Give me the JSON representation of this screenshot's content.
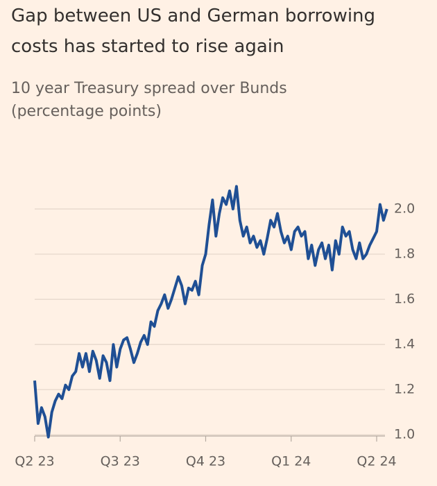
{
  "chart_data": {
    "type": "line",
    "title": [
      "Gap between US and German borrowing",
      "costs has started to rise again"
    ],
    "subtitle": [
      "10 year Treasury spread over Bunds",
      "(percentage points)"
    ],
    "categories": [
      "Q2 23",
      null,
      null,
      null,
      null,
      null,
      null,
      null,
      null,
      null,
      null,
      null,
      null,
      null,
      null,
      null,
      null,
      null,
      null,
      null,
      null,
      null,
      null,
      null,
      null,
      "Q3 23",
      null,
      null,
      null,
      null,
      null,
      null,
      null,
      null,
      null,
      null,
      null,
      null,
      null,
      null,
      null,
      null,
      null,
      null,
      null,
      null,
      null,
      null,
      null,
      null,
      "Q4 23",
      null,
      null,
      null,
      null,
      null,
      null,
      null,
      null,
      null,
      null,
      null,
      null,
      null,
      null,
      null,
      null,
      null,
      null,
      null,
      null,
      null,
      null,
      null,
      null,
      "Q1 24",
      null,
      null,
      null,
      null,
      null,
      null,
      null,
      null,
      null,
      null,
      null,
      null,
      null,
      null,
      null,
      null,
      null,
      null,
      null,
      null,
      null,
      null,
      null,
      null,
      "Q2 24",
      null,
      null,
      null
    ],
    "series": [
      {
        "name": "Spread",
        "color": "#1f4f94",
        "values": [
          1.24,
          1.05,
          1.12,
          1.08,
          0.99,
          1.1,
          1.15,
          1.18,
          1.16,
          1.22,
          1.2,
          1.26,
          1.28,
          1.36,
          1.3,
          1.36,
          1.28,
          1.37,
          1.33,
          1.25,
          1.35,
          1.32,
          1.24,
          1.4,
          1.3,
          1.38,
          1.42,
          1.43,
          1.38,
          1.32,
          1.36,
          1.41,
          1.44,
          1.4,
          1.5,
          1.48,
          1.55,
          1.58,
          1.62,
          1.56,
          1.6,
          1.65,
          1.7,
          1.66,
          1.58,
          1.65,
          1.64,
          1.68,
          1.62,
          1.75,
          1.8,
          1.93,
          2.04,
          1.88,
          1.98,
          2.05,
          2.02,
          2.08,
          2.0,
          2.1,
          1.95,
          1.88,
          1.92,
          1.85,
          1.88,
          1.83,
          1.86,
          1.8,
          1.87,
          1.95,
          1.92,
          1.98,
          1.9,
          1.85,
          1.88,
          1.82,
          1.9,
          1.92,
          1.88,
          1.9,
          1.78,
          1.84,
          1.75,
          1.82,
          1.85,
          1.78,
          1.84,
          1.73,
          1.86,
          1.8,
          1.92,
          1.88,
          1.9,
          1.82,
          1.78,
          1.85,
          1.78,
          1.8,
          1.84,
          1.87,
          1.9,
          2.02,
          1.95,
          2.0
        ]
      }
    ],
    "ylim": [
      0.97,
      2.12
    ],
    "yticks": [
      {
        "value": 1,
        "label": "1.0"
      },
      1.2,
      1.4,
      1.6,
      1.8,
      {
        "value": 2,
        "label": "2.0"
      }
    ],
    "grid": true
  }
}
